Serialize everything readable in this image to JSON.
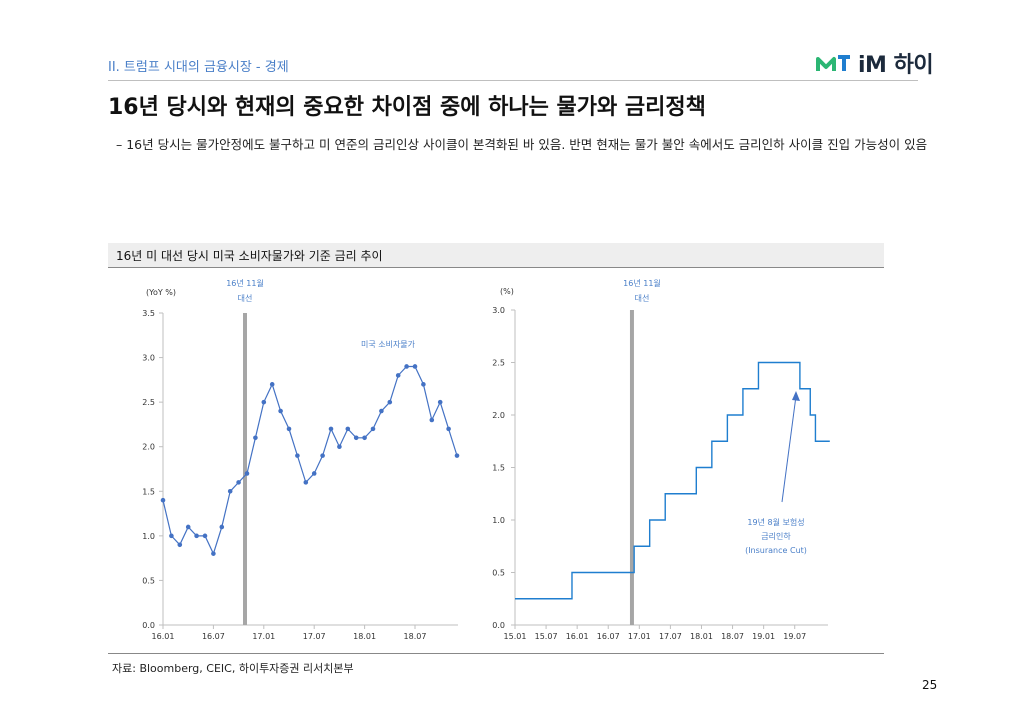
{
  "header": {
    "section": "II. 트럼프 시대의 금융시장 - 경제",
    "logo_text": "iM 하이",
    "title": "16년 당시와 현재의 중요한 차이점 중에 하나는 물가와 금리정책"
  },
  "bullet": "–  16년 당시는 물가안정에도 불구하고 미 연준의 금리인상 사이클이 본격화된 바 있음. 반면 현재는 물가 불안 속에서도 금리인하 사이클 진입 가능성이 있음",
  "chart_header": "16년 미 대선 당시 미국 소비자물가와 기준 금리 추이",
  "footer": {
    "source": "자료: Bloomberg, CEIC, 하이투자증권 리서치본부",
    "page": "25"
  },
  "colors": {
    "accent": "#4a7fc8",
    "line1": "#4472c4",
    "line2": "#1f7ecf",
    "marker": "#a6a6a6",
    "brand_green": "#2bb673"
  },
  "chart_data": [
    {
      "type": "line",
      "title": "미국 소비자물가",
      "ylabel": "(YoY %)",
      "ylim": [
        0,
        3.5
      ],
      "yticks": [
        "0.0",
        "0.5",
        "1.0",
        "1.5",
        "2.0",
        "2.5",
        "3.0",
        "3.5"
      ],
      "xticks": [
        "16.01",
        "16.07",
        "17.01",
        "17.07",
        "18.01",
        "18.07"
      ],
      "x_start": "2016-01",
      "values": [
        1.4,
        1.0,
        0.9,
        1.1,
        1.0,
        1.0,
        0.8,
        1.1,
        1.5,
        1.6,
        1.7,
        2.1,
        2.5,
        2.7,
        2.4,
        2.2,
        1.9,
        1.6,
        1.7,
        1.9,
        2.2,
        2.0,
        2.2,
        2.1,
        2.1,
        2.2,
        2.4,
        2.5,
        2.8,
        2.9,
        2.9,
        2.7,
        2.3,
        2.5,
        2.2,
        1.9
      ],
      "series_label": "미국 소비자물가",
      "marker_label": "16년 11월\n대선",
      "marker_label_lines": [
        "16년 11월",
        "대선"
      ]
    },
    {
      "type": "line",
      "title": "기준 금리",
      "ylabel": "(%)",
      "ylim": [
        0,
        3.0
      ],
      "yticks": [
        "0.0",
        "0.5",
        "1.0",
        "1.5",
        "2.0",
        "2.5",
        "3.0"
      ],
      "xticks": [
        "15.01",
        "15.07",
        "16.01",
        "16.07",
        "17.01",
        "17.07",
        "18.01",
        "18.07",
        "19.01",
        "19.07"
      ],
      "x_start": "2015-01",
      "values": [
        0.25,
        0.25,
        0.25,
        0.25,
        0.25,
        0.25,
        0.25,
        0.25,
        0.25,
        0.25,
        0.25,
        0.5,
        0.5,
        0.5,
        0.5,
        0.5,
        0.5,
        0.5,
        0.5,
        0.5,
        0.5,
        0.5,
        0.5,
        0.75,
        0.75,
        0.75,
        1.0,
        1.0,
        1.0,
        1.25,
        1.25,
        1.25,
        1.25,
        1.25,
        1.25,
        1.5,
        1.5,
        1.5,
        1.75,
        1.75,
        1.75,
        2.0,
        2.0,
        2.0,
        2.25,
        2.25,
        2.25,
        2.5,
        2.5,
        2.5,
        2.5,
        2.5,
        2.5,
        2.5,
        2.5,
        2.25,
        2.25,
        2.0,
        1.75,
        1.75,
        1.75
      ],
      "marker_label_lines": [
        "16년 11월",
        "대선"
      ],
      "annotation_lines": [
        "19년 8월 보험성",
        "금리인하",
        "(Insurance Cut)"
      ]
    }
  ]
}
